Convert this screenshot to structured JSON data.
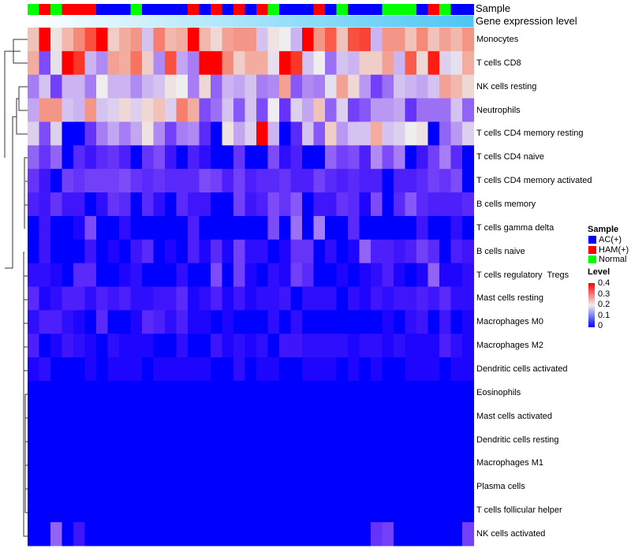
{
  "chart_data": {
    "type": "heatmap",
    "title": "",
    "annotations": {
      "sample_label": "Sample",
      "gene_label": "Gene expression level",
      "sample_groups": [
        "Normal",
        "HAM(+)",
        "Normal",
        "HAM(+)",
        "HAM(+)",
        "HAM(+)",
        "AC(+)",
        "AC(+)",
        "AC(+)",
        "Normal",
        "AC(+)",
        "AC(+)",
        "AC(+)",
        "AC(+)",
        "HAM(+)",
        "AC(+)",
        "HAM(+)",
        "AC(+)",
        "HAM(+)",
        "AC(+)",
        "HAM(+)",
        "Normal",
        "AC(+)",
        "AC(+)",
        "AC(+)",
        "HAM(+)",
        "AC(+)",
        "Normal",
        "AC(+)",
        "AC(+)",
        "AC(+)",
        "Normal",
        "Normal",
        "Normal",
        "AC(+)",
        "HAM(+)",
        "Normal",
        "AC(+)",
        "AC(+)"
      ]
    },
    "rows": [
      "Monocytes",
      "T cells CD8",
      "NK cells resting",
      "Neutrophils",
      "T cells CD4 memory resting",
      "T cells CD4 naive",
      "T cells CD4 memory activated",
      "B cells memory",
      "T cells gamma delta",
      "B cells naive",
      "T cells regulatory  Tregs",
      "Mast cells resting",
      "Macrophages M0",
      "Macrophages M2",
      "Dendritic cells activated",
      "Eosinophils",
      "Mast cells activated",
      "Dendritic cells resting",
      "Macrophages M1",
      "Plasma cells",
      "T cells follicular helper",
      "NK cells activated"
    ],
    "values": [
      [
        0.24,
        0.4,
        0.21,
        0.25,
        0.29,
        0.34,
        0.4,
        0.23,
        0.26,
        0.28,
        0.17,
        0.3,
        0.25,
        0.26,
        0.4,
        0.25,
        0.22,
        0.27,
        0.28,
        0.28,
        0.17,
        0.21,
        0.2,
        0.16,
        0.4,
        0.28,
        0.33,
        0.24,
        0.34,
        0.35,
        0.16,
        0.28,
        0.28,
        0.24,
        0.29,
        0.24,
        0.27,
        0.25,
        0.28
      ],
      [
        0.26,
        0.08,
        0.19,
        0.4,
        0.36,
        0.16,
        0.13,
        0.27,
        0.26,
        0.31,
        0.23,
        0.13,
        0.34,
        0.15,
        0.12,
        0.4,
        0.4,
        0.29,
        0.23,
        0.26,
        0.26,
        0.19,
        0.4,
        0.36,
        0.17,
        0.2,
        0.11,
        0.17,
        0.16,
        0.23,
        0.23,
        0.27,
        0.16,
        0.33,
        0.22,
        0.38,
        0.18,
        0.19,
        0.26
      ],
      [
        0.12,
        0.17,
        0.07,
        0.16,
        0.16,
        0.12,
        0.2,
        0.16,
        0.16,
        0.13,
        0.16,
        0.17,
        0.21,
        0.2,
        0.12,
        0.22,
        0.1,
        0.16,
        0.15,
        0.17,
        0.12,
        0.13,
        0.27,
        0.09,
        0.13,
        0.12,
        0.19,
        0.27,
        0.22,
        0.14,
        0.07,
        0.11,
        0.17,
        0.16,
        0.15,
        0.17,
        0.27,
        0.25,
        0.22
      ],
      [
        0.15,
        0.28,
        0.28,
        0.17,
        0.16,
        0.28,
        0.17,
        0.18,
        0.22,
        0.18,
        0.22,
        0.24,
        0.18,
        0.3,
        0.26,
        0.08,
        0.11,
        0.17,
        0.09,
        0.17,
        0.08,
        0.2,
        0.06,
        0.18,
        0.15,
        0.24,
        0.1,
        0.18,
        0.07,
        0.09,
        0.14,
        0.14,
        0.15,
        0.06,
        0.11,
        0.11,
        0.11,
        0.17,
        0.1
      ],
      [
        0.18,
        0.08,
        0.18,
        0,
        0,
        0.06,
        0.12,
        0.15,
        0.12,
        0.15,
        0.21,
        0.13,
        0.07,
        0.12,
        0.13,
        0.05,
        0,
        0.21,
        0.15,
        0.18,
        0.4,
        0.16,
        0,
        0.05,
        0.17,
        0.09,
        0.23,
        0.14,
        0.17,
        0.17,
        0.26,
        0.17,
        0.18,
        0.2,
        0.21,
        0,
        0.1,
        0.14,
        0.18
      ],
      [
        0.1,
        0.06,
        0.1,
        0,
        0.05,
        0.03,
        0.05,
        0.06,
        0.04,
        0,
        0.06,
        0.08,
        0.03,
        0,
        0.04,
        0.02,
        0,
        0,
        0.06,
        0,
        0,
        0.08,
        0.02,
        0.04,
        0,
        0,
        0.1,
        0.07,
        0.08,
        0.04,
        0.13,
        0.08,
        0.12,
        0,
        0.03,
        0.07,
        0.12,
        0.05,
        0
      ],
      [
        0.06,
        0.03,
        0,
        0.07,
        0.06,
        0.07,
        0.07,
        0.07,
        0.08,
        0.06,
        0.05,
        0.06,
        0.05,
        0.05,
        0.05,
        0.08,
        0.07,
        0.04,
        0.07,
        0.04,
        0.05,
        0.05,
        0.06,
        0.04,
        0.04,
        0.07,
        0.05,
        0.04,
        0.05,
        0.04,
        0.04,
        0,
        0.04,
        0.04,
        0.05,
        0.07,
        0.06,
        0.08,
        0
      ],
      [
        0.04,
        0.03,
        0.06,
        0.03,
        0.03,
        0,
        0.02,
        0.06,
        0.05,
        0,
        0.05,
        0.02,
        0,
        0.05,
        0.03,
        0.03,
        0,
        0,
        0.07,
        0.03,
        0.04,
        0.08,
        0.06,
        0.09,
        0,
        0.03,
        0.03,
        0.06,
        0.05,
        0.01,
        0.08,
        0,
        0.05,
        0.09,
        0.05,
        0.04,
        0.04,
        0.04,
        0.05
      ],
      [
        0,
        0.03,
        0,
        0,
        0.01,
        0.08,
        0,
        0,
        0.02,
        0,
        0,
        0,
        0,
        0,
        0.04,
        0,
        0,
        0,
        0,
        0,
        0,
        0.08,
        0,
        0.11,
        0,
        0.12,
        0,
        0,
        0.05,
        0,
        0,
        0,
        0,
        0,
        0.03,
        0,
        0,
        0.02,
        0
      ],
      [
        0,
        0.03,
        0,
        0,
        0,
        0.03,
        0,
        0.01,
        0,
        0.03,
        0.05,
        0,
        0.01,
        0,
        0.04,
        0.01,
        0.05,
        0.01,
        0.07,
        0.02,
        0.02,
        0,
        0.01,
        0.06,
        0.06,
        0,
        0.02,
        0,
        0.01,
        0.1,
        0.04,
        0.04,
        0.03,
        0.04,
        0.07,
        0.05,
        0,
        0.04,
        0.03
      ],
      [
        0.02,
        0.02,
        0.01,
        0,
        0.05,
        0.05,
        0,
        0,
        0.01,
        0.02,
        0,
        0,
        0,
        0.02,
        0,
        0,
        0.08,
        0,
        0.07,
        0.01,
        0,
        0.02,
        0.01,
        0.07,
        0.05,
        0,
        0,
        0.01,
        0,
        0.01,
        0.02,
        0.04,
        0.01,
        0,
        0.01,
        0.1,
        0.01,
        0.01,
        0.02
      ],
      [
        0.05,
        0.01,
        0.02,
        0.04,
        0.04,
        0.02,
        0.04,
        0.03,
        0.04,
        0.02,
        0.02,
        0.03,
        0.03,
        0.05,
        0.01,
        0.02,
        0.04,
        0.01,
        0.03,
        0.01,
        0.02,
        0.02,
        0.03,
        0,
        0.02,
        0.02,
        0.02,
        0,
        0.02,
        0.01,
        0.03,
        0.02,
        0.03,
        0.03,
        0.04,
        0.03,
        0.05,
        0.02,
        0.02
      ],
      [
        0.02,
        0.04,
        0.04,
        0.02,
        0.01,
        0,
        0.05,
        0,
        0,
        0.01,
        0.05,
        0.04,
        0.02,
        0.04,
        0.01,
        0.01,
        0,
        0.01,
        0,
        0,
        0,
        0.02,
        0,
        0.02,
        0,
        0,
        0,
        0,
        0,
        0,
        0,
        0.01,
        0,
        0.02,
        0.03,
        0,
        0.03,
        0,
        0.01
      ],
      [
        0.04,
        0,
        0.01,
        0.03,
        0.02,
        0.01,
        0,
        0.02,
        0.01,
        0.01,
        0.01,
        0,
        0,
        0.02,
        0,
        0,
        0.03,
        0.01,
        0.02,
        0.01,
        0.02,
        0,
        0.03,
        0.03,
        0.02,
        0.02,
        0.02,
        0.02,
        0.01,
        0.02,
        0.02,
        0.01,
        0.02,
        0.01,
        0.01,
        0.01,
        0.04,
        0.02,
        0.01
      ],
      [
        0.01,
        0.02,
        0,
        0,
        0,
        0.01,
        0,
        0.01,
        0.01,
        0.01,
        0,
        0.01,
        0.01,
        0.01,
        0.01,
        0.01,
        0,
        0,
        0.02,
        0,
        0.01,
        0.01,
        0,
        0,
        0.01,
        0.01,
        0.01,
        0,
        0.01,
        0,
        0.01,
        0,
        0,
        0.01,
        0.01,
        0.01,
        0,
        0.01,
        0.01
      ],
      [
        0,
        0,
        0,
        0,
        0,
        0,
        0,
        0,
        0,
        0,
        0,
        0,
        0,
        0,
        0,
        0,
        0,
        0,
        0,
        0,
        0,
        0,
        0,
        0,
        0,
        0,
        0,
        0,
        0,
        0,
        0,
        0,
        0,
        0,
        0,
        0,
        0,
        0,
        0
      ],
      [
        0,
        0,
        0,
        0,
        0,
        0,
        0,
        0,
        0,
        0,
        0,
        0,
        0,
        0,
        0,
        0,
        0,
        0,
        0,
        0,
        0,
        0,
        0,
        0,
        0,
        0,
        0,
        0,
        0,
        0,
        0,
        0,
        0,
        0,
        0,
        0,
        0,
        0,
        0
      ],
      [
        0,
        0,
        0,
        0,
        0,
        0,
        0,
        0,
        0,
        0,
        0,
        0,
        0,
        0,
        0,
        0,
        0,
        0,
        0,
        0,
        0,
        0,
        0,
        0,
        0,
        0,
        0,
        0,
        0,
        0,
        0,
        0,
        0,
        0,
        0,
        0,
        0,
        0,
        0
      ],
      [
        0,
        0,
        0,
        0,
        0,
        0,
        0,
        0,
        0,
        0,
        0,
        0,
        0,
        0,
        0,
        0,
        0,
        0,
        0,
        0,
        0,
        0,
        0,
        0,
        0,
        0,
        0,
        0,
        0,
        0,
        0,
        0,
        0,
        0,
        0,
        0,
        0,
        0,
        0
      ],
      [
        0,
        0,
        0,
        0,
        0,
        0,
        0,
        0,
        0,
        0,
        0,
        0,
        0,
        0,
        0,
        0,
        0,
        0,
        0,
        0,
        0,
        0,
        0,
        0,
        0,
        0,
        0,
        0,
        0,
        0,
        0,
        0,
        0,
        0,
        0,
        0,
        0,
        0,
        0
      ],
      [
        0,
        0,
        0,
        0,
        0,
        0,
        0,
        0,
        0,
        0,
        0,
        0,
        0,
        0,
        0,
        0,
        0,
        0,
        0,
        0,
        0,
        0,
        0,
        0,
        0,
        0,
        0,
        0,
        0,
        0,
        0,
        0,
        0,
        0,
        0,
        0,
        0,
        0,
        0
      ],
      [
        0,
        0,
        0.1,
        0,
        0.03,
        0,
        0,
        0,
        0,
        0,
        0,
        0,
        0,
        0,
        0,
        0,
        0,
        0,
        0,
        0,
        0,
        0,
        0,
        0,
        0,
        0,
        0,
        0,
        0,
        0,
        0.06,
        0.07,
        0,
        0,
        0,
        0,
        0,
        0,
        0.07
      ]
    ],
    "color_range": [
      0,
      0.4
    ],
    "legend": {
      "sample_title": "Sample",
      "sample_items": [
        {
          "label": "AC(+)",
          "color": "#0000ff"
        },
        {
          "label": "HAM(+)",
          "color": "#ff0000"
        },
        {
          "label": "Normal",
          "color": "#00ff00"
        }
      ],
      "level_title": "Level",
      "level_ticks": [
        "0.4",
        "0.3",
        "0.2",
        "0.1",
        "0"
      ],
      "placement": "right"
    }
  }
}
